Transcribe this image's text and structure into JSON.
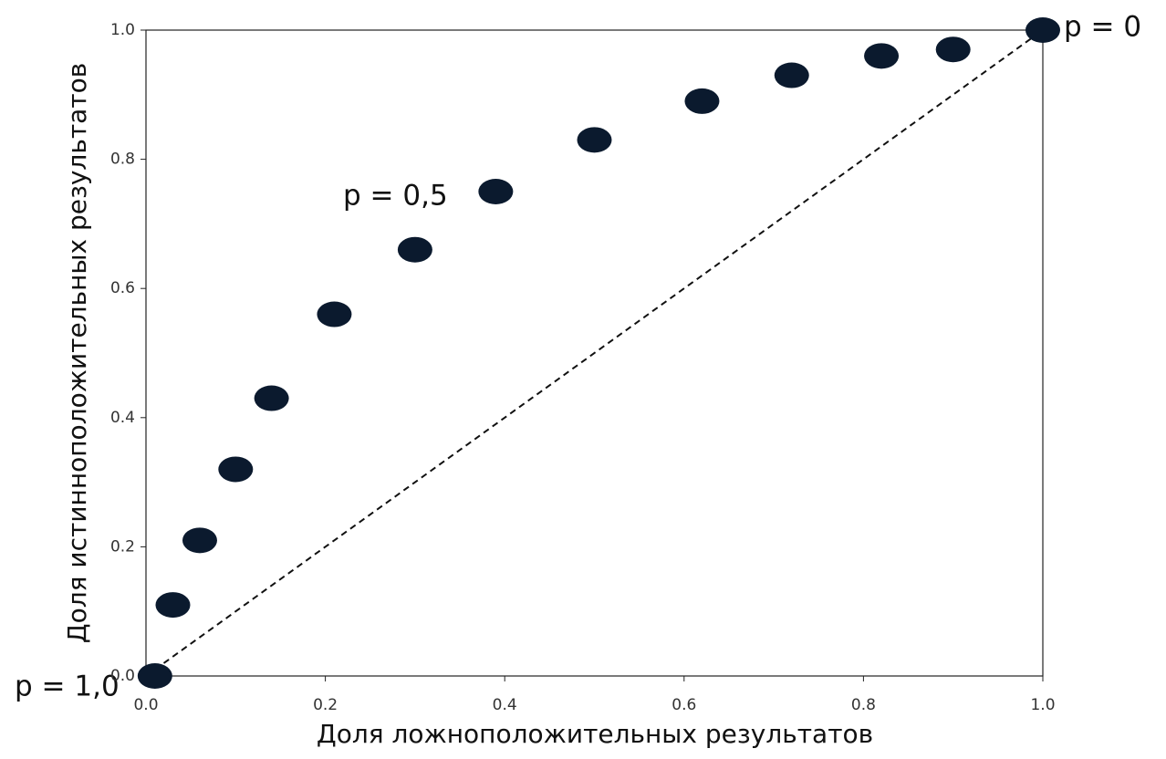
{
  "chart_data": {
    "type": "scatter",
    "x_label": "Доля ложноположительных результатов",
    "y_label": "Доля истинноположительных результатов",
    "x": [
      0.01,
      0.03,
      0.06,
      0.1,
      0.14,
      0.21,
      0.3,
      0.39,
      0.5,
      0.62,
      0.72,
      0.82,
      0.9,
      1.0
    ],
    "values": [
      0.0,
      0.11,
      0.21,
      0.32,
      0.43,
      0.56,
      0.66,
      0.75,
      0.83,
      0.89,
      0.93,
      0.96,
      0.97,
      1.0
    ],
    "color": "#0b1a2e",
    "xlim": [
      0,
      1
    ],
    "ylim": [
      0,
      1
    ],
    "xticks": [
      {
        "value": 0,
        "label": "0.0"
      },
      0.2,
      0.4,
      0.6,
      0.8,
      {
        "value": 1,
        "label": "1.0"
      }
    ],
    "yticks": [
      {
        "value": 0,
        "label": "0.0"
      },
      0.2,
      0.4,
      0.6,
      0.8,
      {
        "value": 1,
        "label": "1.0"
      }
    ],
    "annotations": [
      "p = 1,0",
      "p = 0,5",
      "p = 0"
    ]
  }
}
